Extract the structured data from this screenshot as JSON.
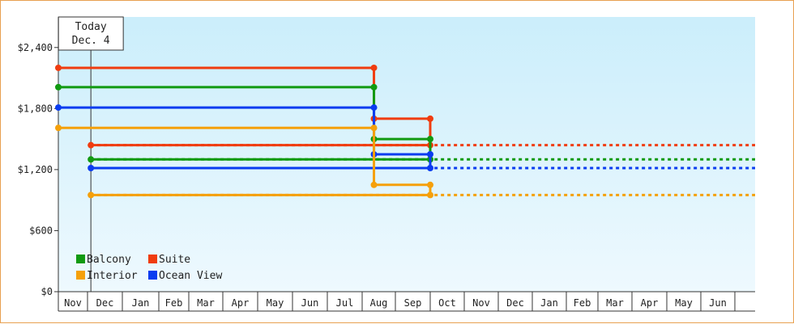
{
  "chart_data": {
    "type": "line",
    "subtype": "step",
    "title": "",
    "xlabel": "",
    "ylabel": "",
    "ylim": [
      0,
      2700
    ],
    "y_ticks": [
      "$0",
      "$600",
      "$1,200",
      "$1,800",
      "$2,400"
    ],
    "y_tick_values": [
      0,
      600,
      1200,
      1800,
      2400
    ],
    "x_months": [
      "Nov",
      "Dec",
      "Jan",
      "Feb",
      "Mar",
      "Apr",
      "May",
      "Jun",
      "Jul",
      "Aug",
      "Sep",
      "Oct",
      "Nov",
      "Dec",
      "Jan",
      "Feb",
      "Mar",
      "Apr",
      "May",
      "Jun"
    ],
    "x_range": [
      "Nov 1",
      "Jul 1 (year 2)"
    ],
    "today": {
      "line1": "Today",
      "line2": "Dec. 4",
      "date": "Dec 4"
    },
    "grid": false,
    "legend_position": "bottom-left",
    "background_gradient": [
      "#cbeefb",
      "#eef9fe"
    ],
    "series": [
      {
        "name": "Suite",
        "color": "#f03c0f",
        "points": [
          [
            "Nov 1",
            2200
          ],
          [
            "Aug 12",
            2200
          ],
          [
            "Aug 12",
            1700
          ],
          [
            "Oct 1",
            1700
          ],
          [
            "Oct 1",
            1440
          ],
          [
            "Dec 4",
            1440
          ]
        ],
        "projection": 1440
      },
      {
        "name": "Balcony",
        "color": "#119a11",
        "points": [
          [
            "Nov 1",
            2010
          ],
          [
            "Aug 12",
            2010
          ],
          [
            "Aug 12",
            1500
          ],
          [
            "Oct 1",
            1500
          ],
          [
            "Oct 1",
            1300
          ],
          [
            "Dec 4",
            1300
          ]
        ],
        "projection": 1300
      },
      {
        "name": "Ocean View",
        "color": "#0a3cf0",
        "points": [
          [
            "Nov 1",
            1810
          ],
          [
            "Aug 12",
            1810
          ],
          [
            "Aug 12",
            1350
          ],
          [
            "Oct 1",
            1350
          ],
          [
            "Oct 1",
            1215
          ],
          [
            "Dec 4",
            1215
          ]
        ],
        "projection": 1215
      },
      {
        "name": "Interior",
        "color": "#f5a00a",
        "points": [
          [
            "Nov 1",
            1610
          ],
          [
            "Aug 12",
            1610
          ],
          [
            "Aug 12",
            1050
          ],
          [
            "Oct 1",
            1050
          ],
          [
            "Oct 1",
            950
          ],
          [
            "Dec 4",
            950
          ]
        ],
        "projection": 950
      }
    ],
    "legend": [
      {
        "name": "Balcony",
        "color": "#119a11"
      },
      {
        "name": "Suite",
        "color": "#f03c0f"
      },
      {
        "name": "Interior",
        "color": "#f5a00a"
      },
      {
        "name": "Ocean View",
        "color": "#0a3cf0"
      }
    ]
  }
}
